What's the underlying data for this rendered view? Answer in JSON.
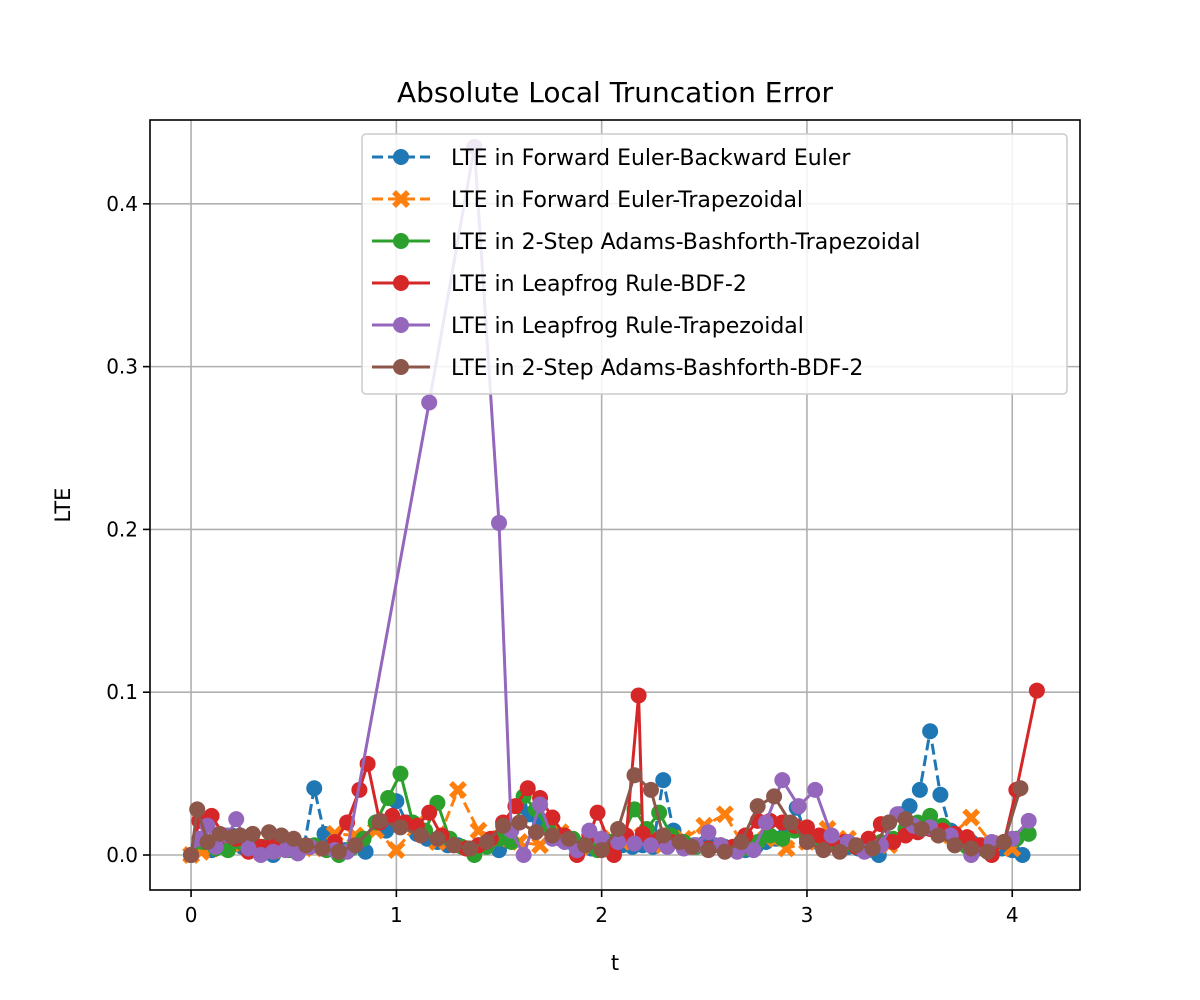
{
  "chart_data": {
    "type": "line",
    "title": "Absolute Local Truncation Error",
    "xlabel": "t",
    "ylabel": "LTE",
    "xlim": [
      -0.2,
      4.33
    ],
    "ylim": [
      -0.0215,
      0.4515
    ],
    "xticks": [
      0,
      1,
      2,
      3,
      4
    ],
    "yticks": [
      0.0,
      0.1,
      0.2,
      0.3,
      0.4
    ],
    "xtick_labels": [
      "0",
      "1",
      "2",
      "3",
      "4"
    ],
    "ytick_labels": [
      "0.0",
      "0.1",
      "0.2",
      "0.3",
      "0.4"
    ],
    "grid": true,
    "legend_position": "upper-right",
    "series": [
      {
        "name": "LTE in Forward Euler-Backward Euler",
        "color": "#1f77b4",
        "dash": "dashed",
        "marker": "circle",
        "x": [
          0.0,
          0.05,
          0.1,
          0.15,
          0.2,
          0.25,
          0.3,
          0.35,
          0.4,
          0.45,
          0.5,
          0.55,
          0.6,
          0.65,
          0.7,
          0.75,
          0.8,
          0.85,
          0.9,
          0.95,
          1.0,
          1.05,
          1.1,
          1.15,
          1.2,
          1.25,
          1.3,
          1.35,
          1.4,
          1.45,
          1.5,
          1.55,
          1.6,
          1.65,
          1.7,
          1.75,
          1.8,
          1.85,
          1.9,
          1.95,
          2.0,
          2.05,
          2.1,
          2.15,
          2.2,
          2.25,
          2.3,
          2.35,
          2.4,
          2.45,
          2.5,
          2.55,
          2.6,
          2.65,
          2.7,
          2.75,
          2.8,
          2.85,
          2.9,
          2.95,
          3.0,
          3.05,
          3.1,
          3.15,
          3.2,
          3.25,
          3.3,
          3.35,
          3.4,
          3.45,
          3.5,
          3.55,
          3.6,
          3.65,
          3.7,
          3.75,
          3.8,
          3.85,
          3.9,
          3.95,
          4.0,
          4.05
        ],
        "y": [
          0.0,
          0.01,
          0.003,
          0.007,
          0.012,
          0.005,
          0.004,
          0.002,
          0.0,
          0.006,
          0.003,
          0.005,
          0.041,
          0.013,
          0.005,
          0.003,
          0.006,
          0.002,
          0.02,
          0.015,
          0.033,
          0.02,
          0.013,
          0.01,
          0.008,
          0.006,
          0.006,
          0.004,
          0.006,
          0.008,
          0.003,
          0.012,
          0.03,
          0.025,
          0.02,
          0.018,
          0.01,
          0.008,
          0.006,
          0.004,
          0.01,
          0.008,
          0.006,
          0.005,
          0.006,
          0.005,
          0.046,
          0.015,
          0.008,
          0.006,
          0.007,
          0.006,
          0.005,
          0.004,
          0.003,
          0.005,
          0.008,
          0.01,
          0.015,
          0.029,
          0.01,
          0.008,
          0.006,
          0.007,
          0.005,
          0.004,
          0.003,
          0.0,
          0.02,
          0.025,
          0.03,
          0.04,
          0.076,
          0.037,
          0.015,
          0.01,
          0.008,
          0.006,
          0.005,
          0.004,
          0.003,
          0.0
        ]
      },
      {
        "name": "LTE in Forward Euler-Trapezoidal",
        "color": "#ff7f0e",
        "dash": "dashed",
        "marker": "x",
        "x": [
          0.0,
          0.05,
          0.1,
          0.2,
          0.3,
          0.4,
          0.5,
          0.6,
          0.7,
          0.8,
          0.9,
          1.0,
          1.1,
          1.2,
          1.3,
          1.4,
          1.5,
          1.6,
          1.7,
          1.8,
          1.9,
          2.0,
          2.1,
          2.2,
          2.3,
          2.4,
          2.5,
          2.6,
          2.7,
          2.8,
          2.9,
          3.0,
          3.1,
          3.2,
          3.3,
          3.4,
          3.5,
          3.6,
          3.7,
          3.8,
          3.9,
          4.0
        ],
        "y": [
          0.0,
          0.002,
          0.004,
          0.007,
          0.006,
          0.003,
          0.006,
          0.004,
          0.013,
          0.012,
          0.015,
          0.003,
          0.019,
          0.008,
          0.04,
          0.015,
          0.01,
          0.008,
          0.006,
          0.014,
          0.005,
          0.01,
          0.008,
          0.012,
          0.006,
          0.01,
          0.018,
          0.025,
          0.004,
          0.01,
          0.004,
          0.008,
          0.016,
          0.01,
          0.005,
          0.006,
          0.018,
          0.017,
          0.012,
          0.023,
          0.007,
          0.004
        ]
      },
      {
        "name": "LTE in 2-Step Adams-Bashforth-Trapezoidal",
        "color": "#2ca02c",
        "dash": "solid",
        "marker": "circle",
        "x": [
          0.0,
          0.06,
          0.12,
          0.18,
          0.24,
          0.3,
          0.36,
          0.42,
          0.48,
          0.54,
          0.6,
          0.66,
          0.72,
          0.78,
          0.84,
          0.9,
          0.96,
          1.02,
          1.08,
          1.14,
          1.2,
          1.26,
          1.32,
          1.38,
          1.44,
          1.5,
          1.56,
          1.62,
          1.68,
          1.74,
          1.8,
          1.86,
          1.92,
          1.98,
          2.04,
          2.1,
          2.16,
          2.22,
          2.28,
          2.34,
          2.4,
          2.46,
          2.52,
          2.58,
          2.64,
          2.7,
          2.76,
          2.82,
          2.88,
          2.94,
          3.0,
          3.06,
          3.12,
          3.18,
          3.24,
          3.3,
          3.36,
          3.42,
          3.48,
          3.54,
          3.6,
          3.66,
          3.72,
          3.78,
          3.84,
          3.9,
          3.96,
          4.02,
          4.08
        ],
        "y": [
          0.0,
          0.008,
          0.004,
          0.003,
          0.008,
          0.006,
          0.005,
          0.004,
          0.003,
          0.005,
          0.006,
          0.003,
          0.0,
          0.004,
          0.01,
          0.02,
          0.035,
          0.05,
          0.02,
          0.015,
          0.032,
          0.01,
          0.005,
          0.0,
          0.005,
          0.01,
          0.008,
          0.036,
          0.028,
          0.016,
          0.012,
          0.01,
          0.006,
          0.003,
          0.008,
          0.012,
          0.028,
          0.016,
          0.026,
          0.012,
          0.008,
          0.005,
          0.004,
          0.006,
          0.005,
          0.004,
          0.008,
          0.012,
          0.01,
          0.015,
          0.012,
          0.01,
          0.008,
          0.006,
          0.005,
          0.004,
          0.008,
          0.01,
          0.016,
          0.02,
          0.024,
          0.018,
          0.006,
          0.005,
          0.004,
          0.006,
          0.008,
          0.01,
          0.013
        ]
      },
      {
        "name": "LTE in Leapfrog Rule-BDF-2",
        "color": "#d62728",
        "dash": "solid",
        "marker": "circle",
        "x": [
          0.0,
          0.04,
          0.1,
          0.16,
          0.22,
          0.28,
          0.34,
          0.4,
          0.46,
          0.52,
          0.58,
          0.64,
          0.7,
          0.76,
          0.82,
          0.86,
          0.92,
          0.98,
          1.04,
          1.1,
          1.16,
          1.22,
          1.28,
          1.34,
          1.4,
          1.46,
          1.52,
          1.58,
          1.64,
          1.7,
          1.76,
          1.82,
          1.88,
          1.94,
          1.98,
          2.06,
          2.12,
          2.18,
          2.2,
          2.28,
          2.34,
          2.4,
          2.46,
          2.52,
          2.58,
          2.64,
          2.7,
          2.76,
          2.82,
          2.88,
          2.94,
          3.0,
          3.06,
          3.12,
          3.18,
          3.24,
          3.3,
          3.36,
          3.42,
          3.48,
          3.54,
          3.6,
          3.66,
          3.72,
          3.78,
          3.84,
          3.9,
          3.96,
          4.02,
          4.12
        ],
        "y": [
          0.0,
          0.021,
          0.024,
          0.012,
          0.01,
          0.002,
          0.005,
          0.008,
          0.004,
          0.006,
          0.005,
          0.004,
          0.008,
          0.02,
          0.04,
          0.056,
          0.02,
          0.024,
          0.02,
          0.018,
          0.026,
          0.012,
          0.006,
          0.004,
          0.006,
          0.01,
          0.02,
          0.03,
          0.041,
          0.035,
          0.023,
          0.012,
          0.0,
          0.012,
          0.026,
          0.0,
          0.012,
          0.098,
          0.013,
          0.01,
          0.008,
          0.005,
          0.006,
          0.004,
          0.006,
          0.005,
          0.012,
          0.021,
          0.021,
          0.02,
          0.018,
          0.017,
          0.012,
          0.01,
          0.008,
          0.005,
          0.01,
          0.019,
          0.008,
          0.012,
          0.014,
          0.016,
          0.015,
          0.013,
          0.011,
          0.006,
          0.0,
          0.008,
          0.04,
          0.101
        ]
      },
      {
        "name": "LTE in Leapfrog Rule-Trapezoidal",
        "color": "#9467bd",
        "dash": "solid",
        "marker": "circle",
        "x": [
          0.0,
          0.04,
          0.08,
          0.12,
          0.18,
          0.22,
          0.28,
          0.34,
          0.4,
          0.46,
          0.52,
          0.58,
          0.64,
          0.7,
          0.76,
          1.16,
          1.38,
          1.5,
          1.56,
          1.62,
          1.7,
          1.76,
          1.82,
          1.88,
          1.94,
          2.0,
          2.08,
          2.16,
          2.24,
          2.32,
          2.4,
          2.46,
          2.52,
          2.58,
          2.66,
          2.74,
          2.8,
          2.88,
          2.96,
          3.04,
          3.12,
          3.2,
          3.28,
          3.36,
          3.44,
          3.52,
          3.6,
          3.7,
          3.8,
          3.9,
          4.0,
          4.08
        ],
        "y": [
          0.0,
          0.01,
          0.018,
          0.005,
          0.012,
          0.022,
          0.004,
          0.0,
          0.002,
          0.003,
          0.001,
          0.005,
          0.004,
          0.003,
          0.002,
          0.278,
          0.435,
          0.204,
          0.015,
          0.0,
          0.031,
          0.01,
          0.008,
          0.003,
          0.015,
          0.01,
          0.008,
          0.007,
          0.006,
          0.005,
          0.004,
          0.006,
          0.014,
          0.006,
          0.002,
          0.003,
          0.02,
          0.046,
          0.03,
          0.04,
          0.012,
          0.008,
          0.002,
          0.006,
          0.025,
          0.018,
          0.017,
          0.012,
          0.0,
          0.008,
          0.01,
          0.021
        ]
      },
      {
        "name": "LTE in 2-Step Adams-Bashforth-BDF-2",
        "color": "#8c564b",
        "dash": "solid",
        "marker": "circle",
        "x": [
          0.0,
          0.03,
          0.08,
          0.14,
          0.2,
          0.24,
          0.3,
          0.38,
          0.44,
          0.5,
          0.56,
          0.64,
          0.72,
          0.8,
          0.92,
          1.02,
          1.12,
          1.2,
          1.28,
          1.36,
          1.44,
          1.52,
          1.6,
          1.68,
          1.76,
          1.84,
          1.92,
          2.0,
          2.08,
          2.16,
          2.24,
          2.3,
          2.38,
          2.44,
          2.52,
          2.6,
          2.68,
          2.76,
          2.84,
          2.92,
          3.0,
          3.08,
          3.16,
          3.24,
          3.32,
          3.4,
          3.48,
          3.56,
          3.64,
          3.72,
          3.8,
          3.88,
          3.96,
          4.04
        ],
        "y": [
          0.0,
          0.028,
          0.008,
          0.013,
          0.011,
          0.012,
          0.013,
          0.014,
          0.012,
          0.01,
          0.006,
          0.004,
          0.002,
          0.006,
          0.021,
          0.017,
          0.012,
          0.01,
          0.006,
          0.004,
          0.008,
          0.018,
          0.02,
          0.014,
          0.012,
          0.01,
          0.006,
          0.003,
          0.016,
          0.049,
          0.04,
          0.012,
          0.008,
          0.005,
          0.003,
          0.002,
          0.008,
          0.03,
          0.036,
          0.02,
          0.008,
          0.003,
          0.002,
          0.006,
          0.004,
          0.02,
          0.022,
          0.016,
          0.012,
          0.006,
          0.004,
          0.002,
          0.008,
          0.041
        ]
      }
    ]
  }
}
